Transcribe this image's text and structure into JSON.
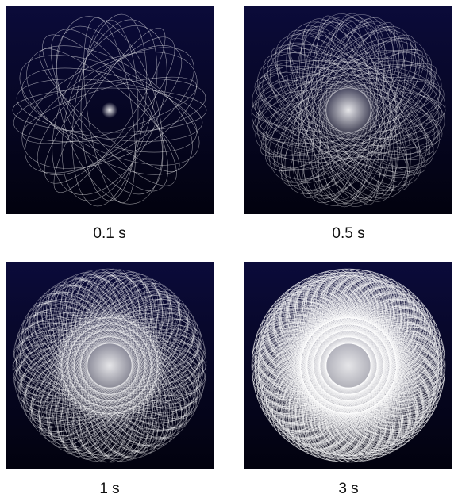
{
  "panels": [
    {
      "caption": "0.1 s"
    },
    {
      "caption": "0.5 s"
    },
    {
      "caption": "1 s"
    },
    {
      "caption": "3 s"
    }
  ]
}
